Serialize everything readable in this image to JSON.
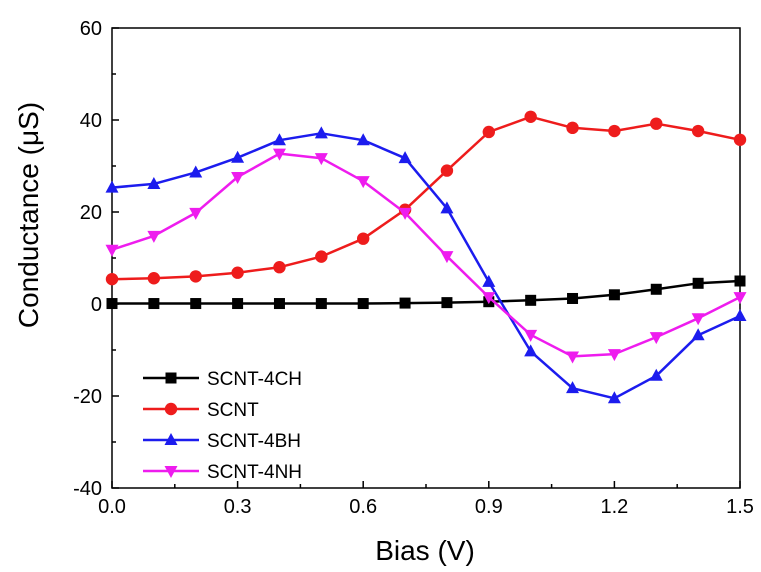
{
  "chart_data": {
    "type": "line",
    "title": "",
    "xlabel": "Bias (V)",
    "ylabel": "Conductance (μS)",
    "xlim": [
      0,
      1.5
    ],
    "ylim": [
      -40,
      60
    ],
    "xticks": [
      "0.0",
      "0.3",
      "0.6",
      "0.9",
      "1.2",
      "1.5"
    ],
    "yticks": [
      "-40",
      "-20",
      "0",
      "20",
      "40",
      "60"
    ],
    "grid": false,
    "legend_position": "bottom-left",
    "x": [
      0.0,
      0.1,
      0.2,
      0.3,
      0.4,
      0.5,
      0.6,
      0.7,
      0.8,
      0.9,
      1.0,
      1.1,
      1.2,
      1.3,
      1.4,
      1.5
    ],
    "series": [
      {
        "name": "SCNT-4CH",
        "color": "#000000",
        "marker": "square",
        "values": [
          0.1,
          0.1,
          0.1,
          0.1,
          0.1,
          0.1,
          0.1,
          0.2,
          0.3,
          0.5,
          0.8,
          1.2,
          2.0,
          3.2,
          4.5,
          5.0
        ]
      },
      {
        "name": "SCNT",
        "color": "#ee1c1c",
        "marker": "circle",
        "values": [
          5.4,
          5.6,
          6.0,
          6.8,
          8.0,
          10.3,
          14.2,
          20.5,
          29.0,
          37.4,
          40.7,
          38.3,
          37.6,
          39.2,
          37.6,
          35.7
        ]
      },
      {
        "name": "SCNT-4BH",
        "color": "#1c1cee",
        "marker": "triangle-up",
        "values": [
          25.3,
          26.1,
          28.6,
          31.8,
          35.6,
          37.1,
          35.6,
          31.7,
          20.8,
          4.8,
          -10.3,
          -18.3,
          -20.5,
          -15.6,
          -6.8,
          -2.6
        ]
      },
      {
        "name": "SCNT-4NH",
        "color": "#ee1cee",
        "marker": "triangle-down",
        "values": [
          11.8,
          14.8,
          19.8,
          27.6,
          32.7,
          31.7,
          26.7,
          19.8,
          10.4,
          1.5,
          -6.7,
          -11.4,
          -10.9,
          -7.2,
          -3.1,
          1.5
        ]
      }
    ]
  }
}
